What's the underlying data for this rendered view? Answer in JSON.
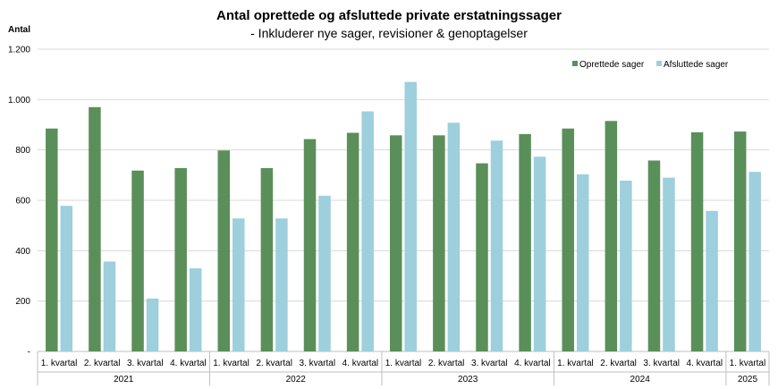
{
  "chart_data": {
    "type": "bar",
    "title": "Antal oprettede og afsluttede private erstatningssager",
    "subtitle": "- Inkluderer nye sager, revisioner & genoptagelser",
    "ylabel": "Antal",
    "ylim": [
      0,
      1200
    ],
    "yticks": [
      0,
      200,
      400,
      600,
      800,
      1000,
      1200
    ],
    "ytick_labels": [
      "-",
      "200",
      "400",
      "600",
      "800",
      "1.000",
      "1.200"
    ],
    "grid": true,
    "legend_position": "top-right",
    "categories": [
      "1. kvartal",
      "2. kvartal",
      "3. kvartal",
      "4. kvartal",
      "1. kvartal",
      "2. kvartal",
      "3. kvartal",
      "4. kvartal",
      "1. kvartal",
      "2. kvartal",
      "3. kvartal",
      "4. kvartal",
      "1. kvartal",
      "2. kvartal",
      "3. kvartal",
      "4. kvartal",
      "1. kvartal"
    ],
    "groups": [
      {
        "label": "2021",
        "count": 4
      },
      {
        "label": "2022",
        "count": 4
      },
      {
        "label": "2023",
        "count": 4
      },
      {
        "label": "2024",
        "count": 4
      },
      {
        "label": "2025",
        "count": 1
      }
    ],
    "series": [
      {
        "name": "Oprettede sager",
        "color": "#5a8f5a",
        "values": [
          885,
          970,
          718,
          728,
          798,
          728,
          843,
          868,
          858,
          858,
          747,
          863,
          885,
          915,
          758,
          870,
          873
        ]
      },
      {
        "name": "Afsluttede sager",
        "color": "#9ecfdc",
        "values": [
          578,
          357,
          210,
          330,
          528,
          528,
          618,
          953,
          1070,
          908,
          837,
          773,
          703,
          678,
          690,
          558,
          713
        ]
      }
    ]
  }
}
